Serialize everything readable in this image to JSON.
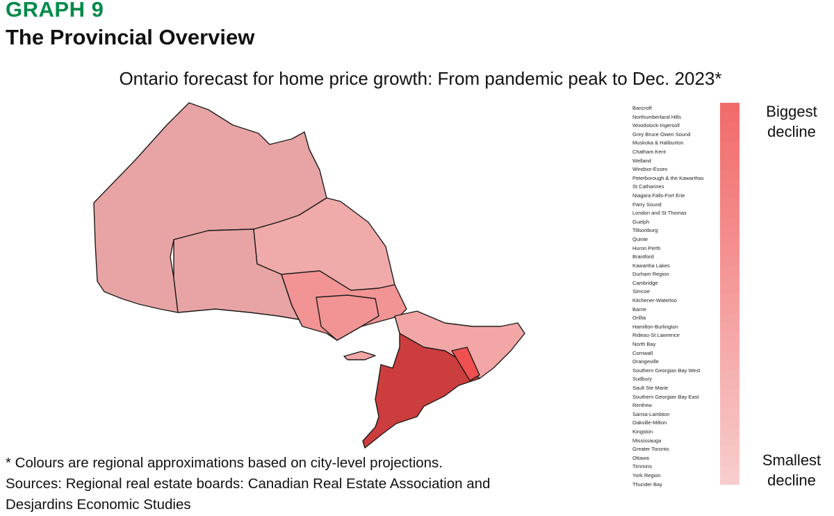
{
  "header": {
    "graph_label": "GRAPH 9",
    "title": "The Provincial Overview"
  },
  "chart_data": {
    "type": "map",
    "title": "Ontario forecast for home price growth: From pandemic peak to Dec. 2023*",
    "legend": {
      "top_label": "Biggest decline",
      "bottom_label": "Smallest decline",
      "placement": "right",
      "regions": [
        "Bancroft",
        "Northumberland Hills",
        "Woodstock-Ingersoll",
        "Grey Bruce Owen Sound",
        "Muskoka & Haliburton",
        "Chatham Kent",
        "Welland",
        "Windsor-Essex",
        "Peterborough & the Kawarthas",
        "St Catharines",
        "Niagara Falls-Fort Erie",
        "Parry Sound",
        "London and St Thomas",
        "Guelph",
        "Tillsonburg",
        "Quinte",
        "Huron Perth",
        "Brantford",
        "Kawartha Lakes",
        "Durham Region",
        "Cambridge",
        "Simcoe",
        "Kitchener-Waterloo",
        "Barrie",
        "Orillia",
        "Hamilton-Burlington",
        "Rideau-St Lawrence",
        "North Bay",
        "Cornwall",
        "Orangeville",
        "Southern Georgian Bay West",
        "Sudbury",
        "Sault Ste Marie",
        "Southern Georgian Bay East",
        "Renfrew",
        "Sarnia-Lambton",
        "Oakville-Milton",
        "Kingston",
        "Mississauga",
        "Greater Toronto",
        "Ottawa",
        "Timmins",
        "York Region",
        "Thunder Bay"
      ],
      "colors": {
        "biggest_decline": "#f26b6b",
        "smallest_decline": "#f8cccc"
      }
    },
    "map_colors": {
      "northwest": "#e8a4a4",
      "northeast": "#f1aaaa",
      "central": "#f29494",
      "east": "#f3a6a6",
      "south": "#cc3d3d",
      "highlight": "#f05050"
    }
  },
  "footnote": {
    "line1": "* Colours are regional approximations based on city-level projections.",
    "line2": "Sources: Regional real estate boards: Canadian Real Estate Association and",
    "line3": "Desjardins Economic Studies"
  }
}
